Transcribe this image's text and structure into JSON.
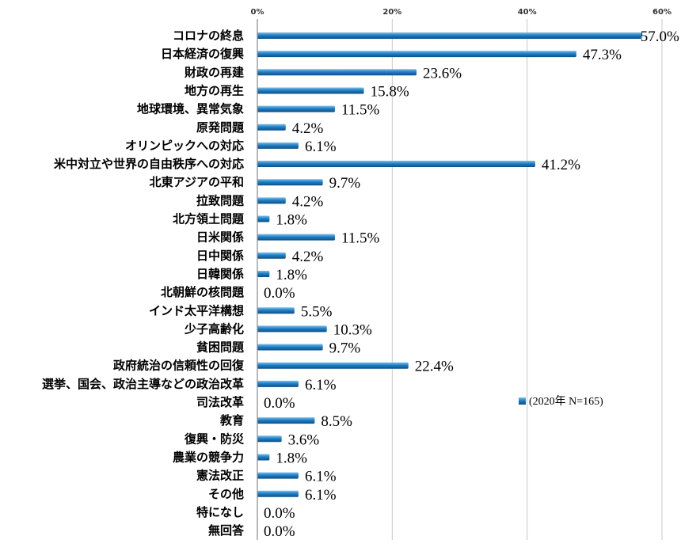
{
  "chart_data": {
    "type": "bar",
    "orientation": "horizontal",
    "categories": [
      "コロナの終息",
      "日本経済の復興",
      "財政の再建",
      "地方の再生",
      "地球環境、異常気象",
      "原発問題",
      "オリンピックへの対応",
      "米中対立や世界の自由秩序への対応",
      "北東アジアの平和",
      "拉致問題",
      "北方領土問題",
      "日米関係",
      "日中関係",
      "日韓関係",
      "北朝鮮の核問題",
      "インド太平洋構想",
      "少子高齢化",
      "貧困問題",
      "政府統治の信頼性の回復",
      "選挙、国会、政治主導などの政治改革",
      "司法改革",
      "教育",
      "復興・防災",
      "農業の競争力",
      "憲法改正",
      "その他",
      "特になし",
      "無回答"
    ],
    "series": [
      {
        "name": "(2020年 N=165)",
        "values": [
          57.0,
          47.3,
          23.6,
          15.8,
          11.5,
          4.2,
          6.1,
          41.2,
          9.7,
          4.2,
          1.8,
          11.5,
          4.2,
          1.8,
          0.0,
          5.5,
          10.3,
          9.7,
          22.4,
          6.1,
          0.0,
          8.5,
          3.6,
          1.8,
          6.1,
          6.1,
          0.0,
          0.0
        ],
        "labels": [
          "57.0%",
          "47.3%",
          "23.6%",
          "15.8%",
          "11.5%",
          "4.2%",
          "6.1%",
          "41.2%",
          "9.7%",
          "4.2%",
          "1.8%",
          "11.5%",
          "4.2%",
          "1.8%",
          "0.0%",
          "5.5%",
          "10.3%",
          "9.7%",
          "22.4%",
          "6.1%",
          "0.0%",
          "8.5%",
          "3.6%",
          "1.8%",
          "6.1%",
          "6.1%",
          "0.0%",
          "0.0%"
        ]
      }
    ],
    "xlim": [
      0,
      60
    ],
    "xticks": [
      0,
      20,
      40,
      60
    ],
    "xtick_labels": [
      "0%",
      "20%",
      "40%",
      "60%"
    ],
    "grid": true,
    "legend": "right",
    "colors": {
      "bar": "#1f7fc4",
      "bar_light": "#6ab4e8",
      "bar_dark": "#0d4e85"
    }
  }
}
